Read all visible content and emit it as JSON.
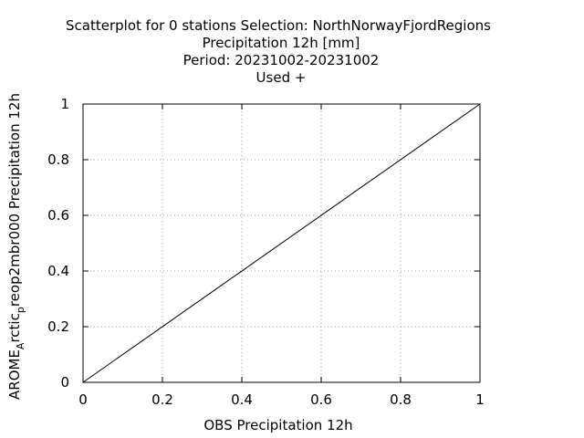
{
  "chart_data": {
    "type": "scatter",
    "title_lines": [
      "Scatterplot for    0 stations Selection: NorthNorwayFjordRegions",
      "Precipitation 12h [mm]",
      "Period: 20231002-20231002",
      "Used   +"
    ],
    "xlabel": "OBS Precipitation 12h",
    "ylabel_main": "AROME",
    "ylabel_sub1": "A",
    "ylabel_mid": "rctic",
    "ylabel_sub2": "p",
    "ylabel_tail": "reop2mbr000 Precipitation 12h",
    "xlim": [
      0,
      1
    ],
    "ylim": [
      0,
      1
    ],
    "x_ticks": [
      0,
      0.2,
      0.4,
      0.6,
      0.8,
      1
    ],
    "y_ticks": [
      0,
      0.2,
      0.4,
      0.6,
      0.8,
      1
    ],
    "x_tick_labels": [
      "0",
      "0.2",
      "0.4",
      "0.6",
      "0.8",
      "1"
    ],
    "y_tick_labels": [
      "0",
      "0.2",
      "0.4",
      "0.6",
      "0.8",
      "1"
    ],
    "grid": true,
    "series": [],
    "reference_line": {
      "x": [
        0,
        1
      ],
      "y": [
        0,
        1
      ]
    }
  }
}
